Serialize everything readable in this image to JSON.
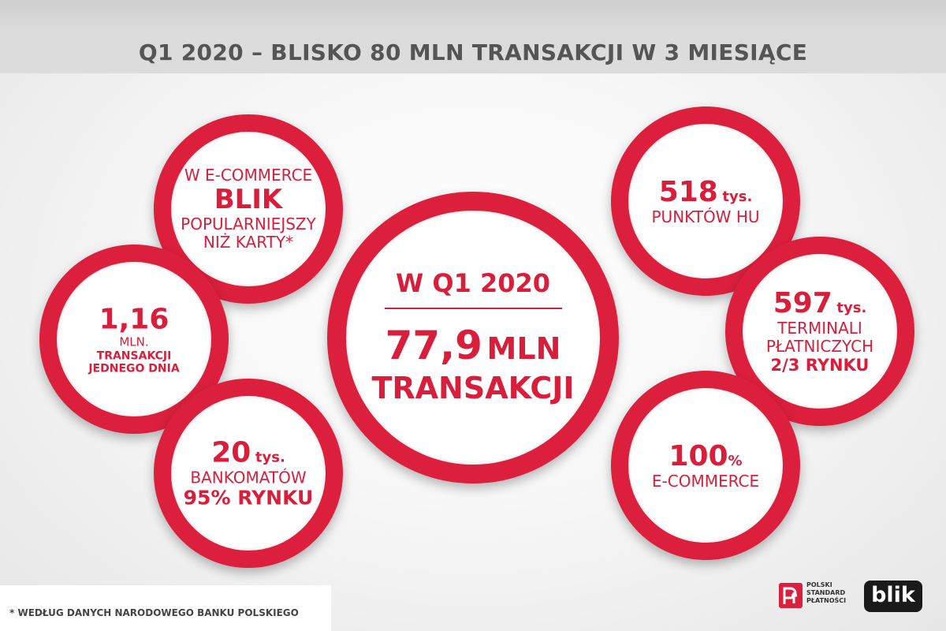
{
  "title": "Q1 2020 – BLISKO 80 MLN TRANSAKCJI W 3 MIESIĄCE",
  "accent_color": "#dc1f3c",
  "left_circles": [
    {
      "line1": "W E-COMMERCE",
      "line2": "BLIK",
      "line3": "POPULARNIEJSZY",
      "line4": "NIŻ KARTY*"
    },
    {
      "value": "1,16",
      "line1": "MLN.",
      "line2": "TRANSAKCJI",
      "line3": "JEDNEGO DNIA"
    },
    {
      "value": "20",
      "unit": "tys.",
      "line1": "BANKOMATÓW",
      "line2": "95% RYNKU"
    }
  ],
  "center": {
    "heading": "W Q1 2020",
    "value": "77,9",
    "unit": "MLN",
    "label": "TRANSAKCJI"
  },
  "right_circles": [
    {
      "value": "518",
      "unit": "tys.",
      "line1": "PUNKTÓW HU"
    },
    {
      "value": "597",
      "unit": "tys.",
      "line1": "TERMINALI",
      "line2": "PŁATNICZYCH",
      "line3": "2/3 RYNKU"
    },
    {
      "value": "100",
      "unit": "%",
      "line1": "E-COMMERCE"
    }
  ],
  "footnote": "* WEDŁUG DANYCH NARODOWEGO BANKU POLSKIEGO",
  "logos": {
    "pst_line1": "POLSKI",
    "pst_line2": "STANDARD",
    "pst_line3": "PŁATNOŚCI",
    "blik": "blik"
  }
}
